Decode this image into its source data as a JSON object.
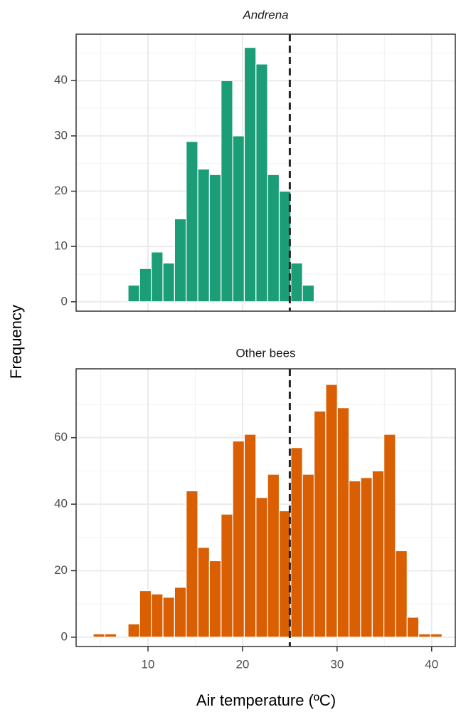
{
  "chart_data": [
    {
      "type": "histogram",
      "title": "Andrena",
      "title_italic": true,
      "color": "#1b9e77",
      "bins": [
        4.2,
        5.43,
        6.66,
        7.89,
        9.12,
        10.35,
        11.58,
        12.81,
        14.04,
        15.27,
        16.5,
        17.73,
        18.96,
        20.19,
        21.42,
        22.65,
        23.88,
        25.11,
        26.34,
        27.57,
        28.8,
        30.03,
        31.26,
        32.49,
        33.72,
        34.95,
        36.18,
        37.41,
        38.64,
        39.87,
        41.1
      ],
      "values": [
        0,
        0,
        0,
        3,
        6,
        9,
        7,
        15,
        29,
        24,
        23,
        40,
        30,
        46,
        43,
        23,
        20,
        7,
        3,
        0,
        0,
        0,
        0,
        0,
        0,
        0,
        0,
        0,
        0,
        0
      ],
      "xlim": [
        2.4,
        42.5
      ],
      "ylim": [
        -1.7,
        48.4
      ],
      "xticks": [
        10,
        20,
        30,
        40
      ],
      "yticks": [
        0,
        10,
        20,
        30,
        40
      ],
      "xminor": [
        5,
        15,
        25,
        35
      ],
      "yminor": [
        5,
        15,
        25,
        35,
        45
      ],
      "xtick_labels": false,
      "grid": true,
      "vline": 25
    },
    {
      "type": "histogram",
      "title": "Other bees",
      "title_italic": false,
      "color": "#d95f02",
      "bins": [
        4.2,
        5.43,
        6.66,
        7.89,
        9.12,
        10.35,
        11.58,
        12.81,
        14.04,
        15.27,
        16.5,
        17.73,
        18.96,
        20.19,
        21.42,
        22.65,
        23.88,
        25.11,
        26.34,
        27.57,
        28.8,
        30.03,
        31.26,
        32.49,
        33.72,
        34.95,
        36.18,
        37.41,
        38.64,
        39.87,
        41.1
      ],
      "values": [
        1,
        1,
        0,
        4,
        14,
        13,
        12,
        15,
        44,
        27,
        23,
        37,
        59,
        61,
        42,
        49,
        38,
        57,
        49,
        68,
        76,
        69,
        47,
        48,
        50,
        61,
        26,
        6,
        1,
        1
      ],
      "xlim": [
        2.4,
        42.5
      ],
      "ylim": [
        -2.8,
        80.7
      ],
      "xticks": [
        10,
        20,
        30,
        40
      ],
      "yticks": [
        0,
        20,
        40,
        60
      ],
      "xminor": [
        5,
        15,
        25,
        35
      ],
      "yminor": [
        10,
        30,
        50,
        70
      ],
      "xtick_labels": true,
      "grid": true,
      "vline": 25
    }
  ],
  "xlabel": "Air temperature (ºC)",
  "ylabel": "Frequency"
}
